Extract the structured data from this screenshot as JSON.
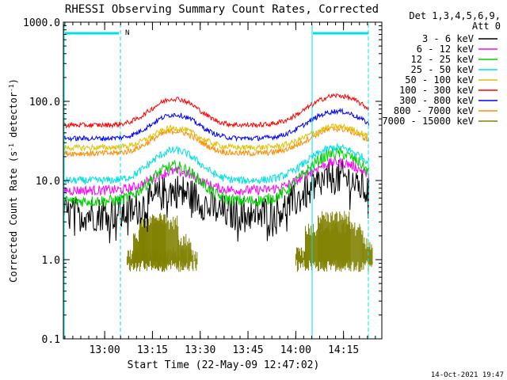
{
  "chart_data": {
    "type": "line",
    "title": "RHESSI Observing Summary Count Rates, Corrected",
    "xlabel": "Start Time (22-May-09 12:47:02)",
    "ylabel": "Corrected Count Rate (s",
    "ylabel_sup": "-1",
    "ylabel_mid": " detector",
    "ylabel_end": ")",
    "y_scale": "log",
    "ylim": [
      0.1,
      1000
    ],
    "xlim_minutes_after_start": [
      0,
      100
    ],
    "x_ticks": [
      {
        "label": "13:00",
        "minute": 12.97
      },
      {
        "label": "13:15",
        "minute": 27.97
      },
      {
        "label": "13:30",
        "minute": 42.97
      },
      {
        "label": "13:45",
        "minute": 57.97
      },
      {
        "label": "14:00",
        "minute": 72.97
      },
      {
        "label": "14:15",
        "minute": 87.97
      }
    ],
    "y_ticks": [
      {
        "label": "0.1",
        "value": 0.1
      },
      {
        "label": "1.0",
        "value": 1.0
      },
      {
        "label": "10.0",
        "value": 10.0
      },
      {
        "label": "100.0",
        "value": 100.0
      },
      {
        "label": "1000.0",
        "value": 1000.0
      }
    ],
    "legend": {
      "placement": "right",
      "header": [
        "Det 1,3,4,5,6,9,",
        "Att 0"
      ]
    },
    "series": [
      {
        "name": "3 - 6 keV",
        "color": "#000000",
        "base": 3.8,
        "peak1": 7.5,
        "peak2": 11,
        "noise": 0.18
      },
      {
        "name": "6 - 12 keV",
        "color": "#ff00ff",
        "base": 7.5,
        "peak1": 13,
        "peak2": 17,
        "noise": 0.05
      },
      {
        "name": "12 - 25 keV",
        "color": "#00d000",
        "base": 5.5,
        "peak1": 15,
        "peak2": 22,
        "noise": 0.06
      },
      {
        "name": "25 - 50 keV",
        "color": "#00e0e0",
        "base": 10,
        "peak1": 24,
        "peak2": 26,
        "noise": 0.04
      },
      {
        "name": "50 - 100 keV",
        "color": "#e0c000",
        "base": 26,
        "peak1": 46,
        "peak2": 48,
        "noise": 0.03
      },
      {
        "name": "100 - 300 keV",
        "color": "#ff0000",
        "base": 50,
        "peak1": 108,
        "peak2": 118,
        "noise": 0.025
      },
      {
        "name": "300 - 800 keV",
        "color": "#0000ff",
        "base": 34,
        "peak1": 68,
        "peak2": 75,
        "noise": 0.025
      },
      {
        "name": "800 - 7000 keV",
        "color": "#ff8c00",
        "base": 22,
        "peak1": 42,
        "peak2": 45,
        "noise": 0.03
      },
      {
        "name": "7000 - 15000 keV",
        "color": "#808000",
        "base": 1.0,
        "peak1": 3.0,
        "peak2": 3.0,
        "noise": 0.0
      }
    ],
    "annotations": [
      {
        "label": "N",
        "color": "#00e0e0"
      }
    ]
  },
  "footer_timestamp": "14-Oct-2021 19:47"
}
